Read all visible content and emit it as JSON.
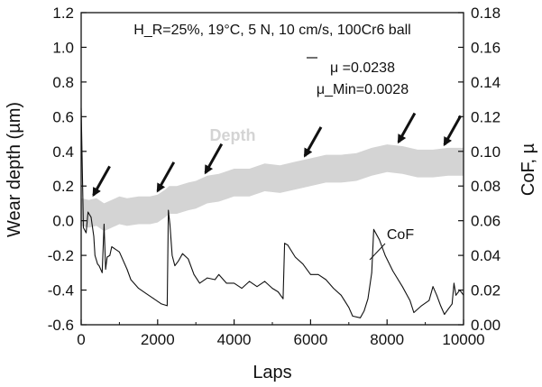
{
  "chart_data": {
    "type": "line",
    "title": "",
    "xlabel": "Laps",
    "ylabel": "Wear depth (µm)",
    "ylabel_right": "CoF, µ",
    "xlim": [
      0,
      10000
    ],
    "ylim": [
      -0.6,
      1.2
    ],
    "ylim_right": [
      0.0,
      0.18
    ],
    "x_ticks": [
      "0",
      "2000",
      "4000",
      "6000",
      "8000",
      "10000"
    ],
    "y_ticks": [
      "-0.6",
      "-0.4",
      "-0.2",
      "0.0",
      "0.2",
      "0.4",
      "0.6",
      "0.8",
      "1.0",
      "1.2"
    ],
    "y_ticks_right": [
      "0.00",
      "0.02",
      "0.04",
      "0.06",
      "0.08",
      "0.10",
      "0.12",
      "0.14",
      "0.16",
      "0.18"
    ],
    "grid": false,
    "annotations": {
      "conditions": "H_R=25%, 19°C, 5 N, 10 cm/s, 100Cr6 ball",
      "mu_mean": "μ =0.0238",
      "mu_min": "μ_Min=0.0028",
      "depth_label": "Depth",
      "cof_label": "CoF"
    },
    "arrow_targets_laps": [
      320,
      2000,
      3250,
      5850,
      8300,
      9500
    ],
    "series": [
      {
        "name": "Depth",
        "axis": "left",
        "color": "#d4d4d4",
        "x": [
          0,
          200,
          400,
          600,
          800,
          1000,
          1200,
          1500,
          1800,
          2000,
          2200,
          2300,
          2500,
          2800,
          3000,
          3300,
          3600,
          4000,
          4400,
          4800,
          5200,
          5600,
          6000,
          6400,
          6800,
          7200,
          7600,
          8000,
          8400,
          8800,
          9200,
          9600,
          10000
        ],
        "y": [
          0.05,
          0.04,
          0.05,
          0.02,
          0.04,
          0.06,
          0.05,
          0.06,
          0.06,
          0.07,
          0.1,
          0.12,
          0.12,
          0.14,
          0.15,
          0.18,
          0.19,
          0.22,
          0.22,
          0.25,
          0.24,
          0.26,
          0.28,
          0.3,
          0.3,
          0.31,
          0.34,
          0.36,
          0.35,
          0.33,
          0.33,
          0.34,
          0.34
        ],
        "band": 0.08
      },
      {
        "name": "CoF",
        "axis": "right",
        "color": "#111111",
        "x": [
          0,
          60,
          130,
          180,
          260,
          330,
          360,
          430,
          470,
          550,
          600,
          640,
          680,
          750,
          800,
          1000,
          1200,
          1300,
          1500,
          1700,
          1900,
          2100,
          2250,
          2280,
          2320,
          2380,
          2450,
          2550,
          2650,
          2800,
          2950,
          3100,
          3300,
          3500,
          3600,
          3800,
          4000,
          4200,
          4400,
          4600,
          4800,
          5000,
          5150,
          5280,
          5320,
          5400,
          5600,
          5800,
          6000,
          6200,
          6400,
          6600,
          6800,
          7000,
          7100,
          7300,
          7400,
          7500,
          7600,
          7650,
          7800,
          7950,
          8150,
          8400,
          8600,
          8700,
          8900,
          9100,
          9200,
          9300,
          9400,
          9500,
          9600,
          9700,
          9750,
          9800,
          9900,
          10000
        ],
        "y": [
          0.125,
          0.056,
          0.053,
          0.065,
          0.062,
          0.051,
          0.04,
          0.035,
          0.034,
          0.03,
          0.058,
          0.032,
          0.039,
          0.04,
          0.045,
          0.042,
          0.032,
          0.026,
          0.021,
          0.018,
          0.015,
          0.012,
          0.011,
          0.066,
          0.058,
          0.04,
          0.034,
          0.037,
          0.041,
          0.038,
          0.029,
          0.024,
          0.027,
          0.026,
          0.029,
          0.024,
          0.024,
          0.021,
          0.025,
          0.022,
          0.025,
          0.021,
          0.019,
          0.015,
          0.047,
          0.046,
          0.039,
          0.035,
          0.029,
          0.029,
          0.026,
          0.021,
          0.017,
          0.01,
          0.005,
          0.004,
          0.008,
          0.015,
          0.03,
          0.055,
          0.049,
          0.04,
          0.031,
          0.022,
          0.014,
          0.007,
          0.011,
          0.014,
          0.022,
          0.017,
          0.011,
          0.006,
          0.009,
          0.012,
          0.024,
          0.017,
          0.02,
          0.017
        ]
      }
    ]
  }
}
